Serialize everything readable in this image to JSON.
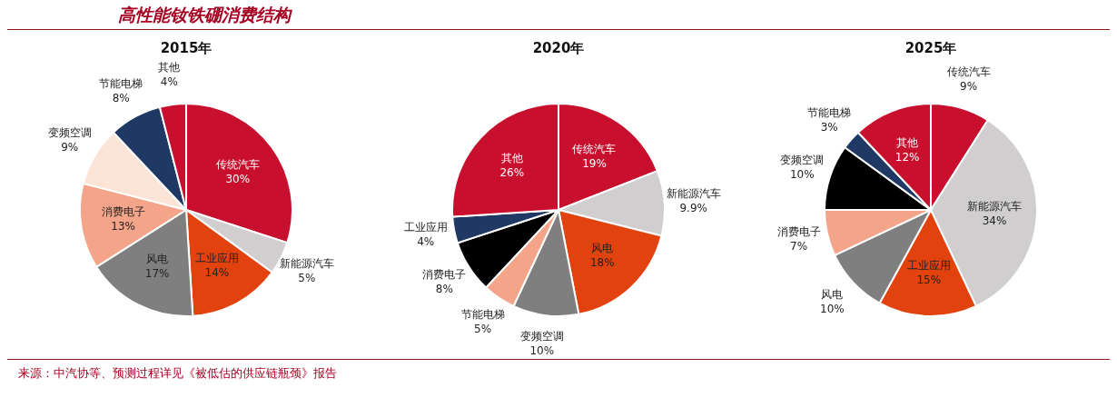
{
  "chart_data": [
    {
      "type": "other",
      "title": "高性能钕铁硼消费结构",
      "annotations": [
        "来源：中汽协等、预测过程详见《被低估的供应链瓶颈》报告"
      ]
    },
    {
      "type": "pie",
      "title": "2015年",
      "categories": [
        "传统汽车",
        "新能源汽车",
        "工业应用",
        "风电",
        "消费电子",
        "变频空调",
        "节能电梯",
        "其他"
      ],
      "values": [
        30,
        5,
        14,
        17,
        13,
        9,
        8,
        4
      ],
      "colors": [
        "#c8102e",
        "#d0cece",
        "#e2420d",
        "#7f7f7f",
        "#f4a488",
        "#fce4d6",
        "#1f3864",
        "#c8102e"
      ],
      "value_labels": [
        "30%",
        "5%",
        "14%",
        "17%",
        "13%",
        "9%",
        "8%",
        "4%"
      ]
    },
    {
      "type": "pie",
      "title": "2020年",
      "categories": [
        "传统汽车",
        "新能源汽车",
        "风电",
        "变频空调",
        "节能电梯",
        "消费电子",
        "工业应用",
        "其他"
      ],
      "values": [
        19,
        9.9,
        18,
        10,
        5,
        8,
        4,
        26
      ],
      "colors": [
        "#c8102e",
        "#d0cece",
        "#e2420d",
        "#7f7f7f",
        "#f4a488",
        "#000000",
        "#1f3864",
        "#c8102e"
      ],
      "value_labels": [
        "19%",
        "9.9%",
        "18%",
        "10%",
        "5%",
        "8%",
        "4%",
        "26%"
      ]
    },
    {
      "type": "pie",
      "title": "2025年",
      "categories": [
        "传统汽车",
        "新能源汽车",
        "工业应用",
        "风电",
        "消费电子",
        "变频空调",
        "节能电梯",
        "其他"
      ],
      "values": [
        9,
        34,
        15,
        10,
        7,
        10,
        3,
        12
      ],
      "colors": [
        "#c8102e",
        "#d0cece",
        "#e2420d",
        "#7f7f7f",
        "#f4a488",
        "#000000",
        "#1f3864",
        "#c8102e"
      ],
      "value_labels": [
        "9%",
        "34%",
        "15%",
        "10%",
        "7%",
        "10%",
        "3%",
        "12%"
      ]
    }
  ]
}
